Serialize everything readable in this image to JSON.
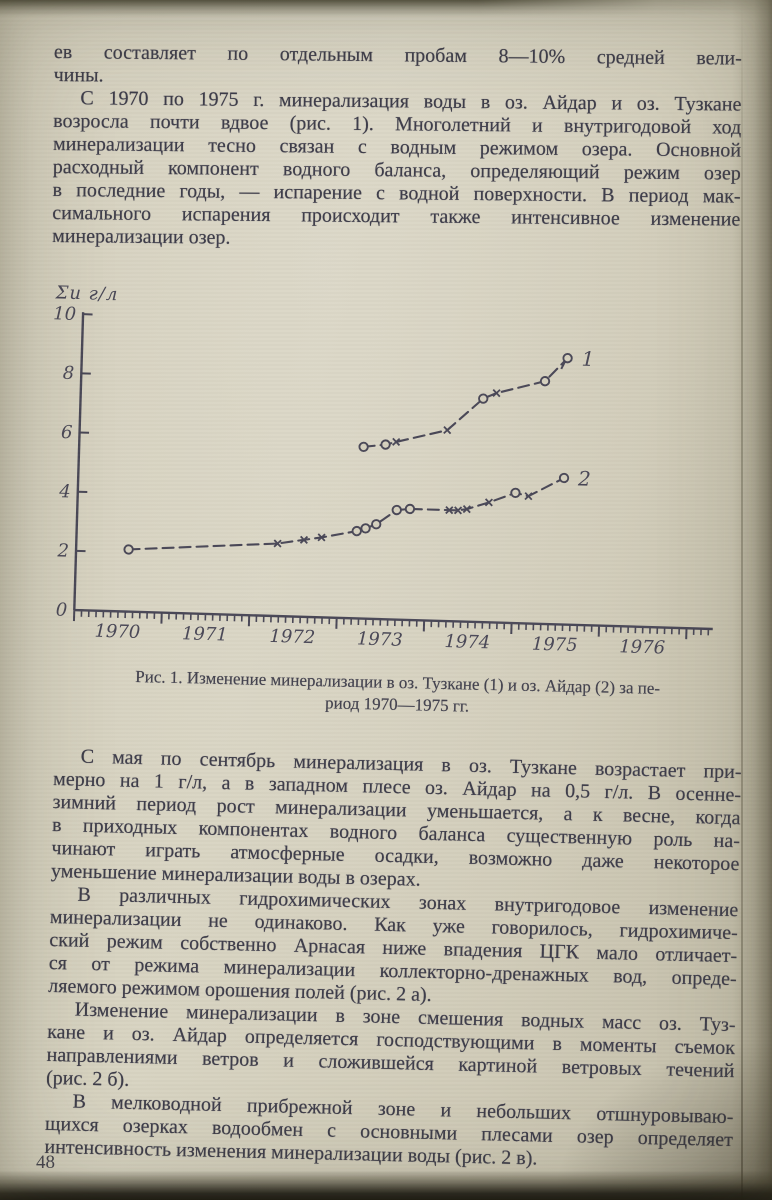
{
  "page": {
    "number": "48",
    "paper_color": "#d6d1bf",
    "ink_color": "#4a4857"
  },
  "paragraphs_top": [
    {
      "indent": false,
      "lines": [
        "ев составляет по отдельным пробам 8—10% средней вели-",
        "чины."
      ]
    },
    {
      "indent": true,
      "lines": [
        "С 1970 по 1975 г. минерализация воды в оз. Айдар и оз. Тузкане",
        "возросла почти вдвое (рис. 1). Многолетний и внутригодовой ход",
        "минерализации тесно связан с водным режимом озера. Основной",
        "расходный компонент водного баланса, определяющий режим озер",
        "в последние годы, — испарение с водной поверхности. В период мак-",
        "симального испарения происходит также интенсивное изменение",
        "минерализации озер."
      ]
    }
  ],
  "figure": {
    "caption_lines": [
      "Рис. 1. Изменение минерализации в оз. Тузкане (1) и оз. Айдар (2) за пе-",
      "риод 1970—1975 гг."
    ]
  },
  "chart_data": {
    "type": "line",
    "ylabel": "Σи г/л",
    "ylim": [
      0,
      10
    ],
    "yticks": [
      0,
      2,
      4,
      6,
      8,
      10
    ],
    "xticks": [
      1970,
      1971,
      1972,
      1973,
      1974,
      1975,
      1976
    ],
    "xlim": [
      1970,
      1977.3
    ],
    "grid": false,
    "line_style": "dashed",
    "series": [
      {
        "name": "1",
        "flag": true,
        "points": [
          [
            1973.25,
            5.8,
            "o"
          ],
          [
            1973.5,
            5.9,
            "o"
          ],
          [
            1973.62,
            6.0,
            "x"
          ],
          [
            1974.2,
            6.45,
            "x"
          ],
          [
            1974.6,
            7.55,
            "o"
          ],
          [
            1974.75,
            7.75,
            "x"
          ],
          [
            1975.3,
            8.2,
            "o"
          ],
          [
            1975.55,
            9.0,
            "o"
          ]
        ]
      },
      {
        "name": "2",
        "flag": false,
        "points": [
          [
            1970.6,
            2.1,
            "o"
          ],
          [
            1972.3,
            2.45,
            "x"
          ],
          [
            1972.6,
            2.6,
            "x"
          ],
          [
            1972.8,
            2.7,
            "x"
          ],
          [
            1973.2,
            2.95,
            "o"
          ],
          [
            1973.3,
            3.05,
            "o"
          ],
          [
            1973.42,
            3.2,
            "o"
          ],
          [
            1973.65,
            3.7,
            "o"
          ],
          [
            1973.8,
            3.75,
            "o"
          ],
          [
            1974.25,
            3.75,
            "x"
          ],
          [
            1974.35,
            3.75,
            "x"
          ],
          [
            1974.45,
            3.8,
            "x"
          ],
          [
            1974.7,
            4.05,
            "x"
          ],
          [
            1975.0,
            4.4,
            "o"
          ],
          [
            1975.15,
            4.3,
            "x"
          ],
          [
            1975.55,
            4.95,
            "o"
          ]
        ]
      }
    ]
  },
  "paragraphs_main": [
    {
      "indent": true,
      "lines": [
        "С мая по сентябрь минерализация в оз. Тузкане возрастает при-",
        "мерно на 1 г/л, а в западном плесе оз. Айдар на 0,5 г/л. В осенне-",
        "зимний период рост минерализации уменьшается, а к весне, когда",
        "в приходных компонентах водного баланса существенную роль на-",
        "чинают играть атмосферные осадки, возможно даже некоторое",
        "уменьшение минерализации воды в озерах."
      ]
    },
    {
      "indent": true,
      "lines": [
        "В различных гидрохимических зонах внутригодовое изменение",
        "минерализации не одинаково. Как уже говорилось, гидрохимиче-",
        "ский режим собственно Арнасая ниже впадения ЦГК мало отличает-",
        "ся от режима минерализации коллекторно-дренажных вод, опреде-",
        "ляемого режимом орошения полей (рис. 2 а)."
      ]
    },
    {
      "indent": true,
      "lines": [
        "Изменение минерализации в зоне смешения водных масс оз. Туз-",
        "кане и оз. Айдар определяется господствующими в моменты съемок",
        "направлениями ветров и сложившейся картиной ветровых течений",
        "(рис. 2 б)."
      ]
    },
    {
      "indent": true,
      "lines": [
        "В мелководной прибрежной зоне и небольших отшнуровываю-",
        "щихся озерках водообмен с основными плесами озер определяет",
        "интенсивность изменения минерализации воды (рис. 2 в)."
      ]
    }
  ]
}
